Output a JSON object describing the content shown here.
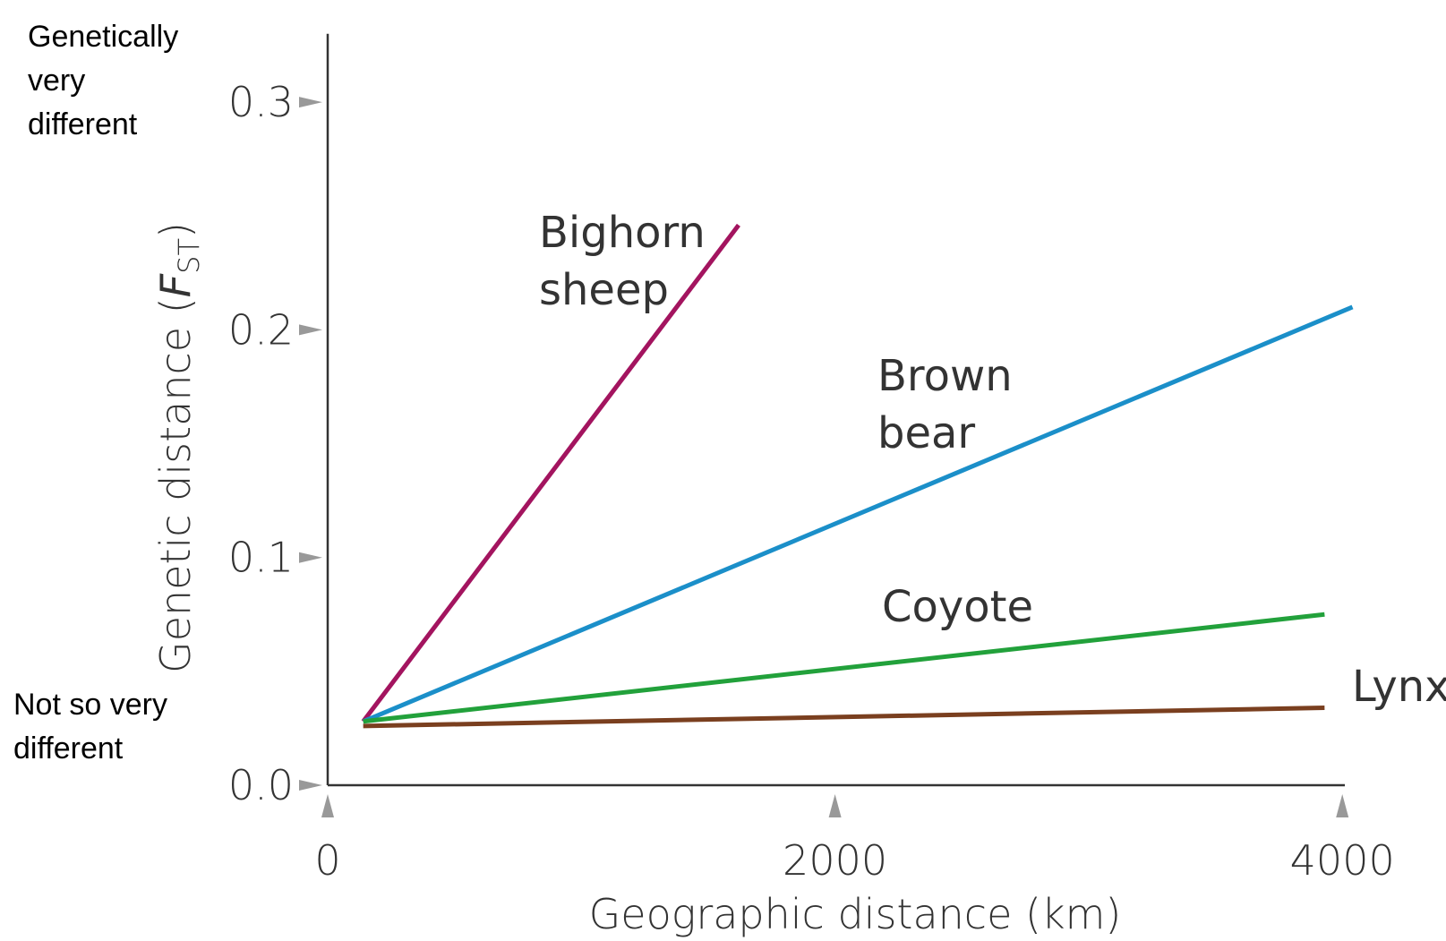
{
  "chart_data": {
    "type": "line",
    "xlabel": "Geographic distance (km)",
    "ylabel": {
      "text": "Genetic distance (",
      "symbol": "F",
      "subscript": "ST",
      "close": ")"
    },
    "annotations": [
      "Genetically very different",
      "Not so very different"
    ],
    "xlim": [
      0,
      4010
    ],
    "ylim": [
      0,
      0.33
    ],
    "xticks": [
      0,
      2000,
      4000
    ],
    "yticks": [
      {
        "value": 0,
        "label": "0.0"
      },
      0.1,
      0.2,
      0.3
    ],
    "series": [
      {
        "name": "Bighorn sheep",
        "color": "#a3145f",
        "x": [
          140,
          1620
        ],
        "values": [
          0.028,
          0.246
        ]
      },
      {
        "name": "Brown bear",
        "color": "#1b8fc9",
        "x": [
          140,
          4040
        ],
        "values": [
          0.028,
          0.21
        ]
      },
      {
        "name": "Coyote",
        "color": "#22a13b",
        "x": [
          140,
          3930
        ],
        "values": [
          0.028,
          0.075
        ]
      },
      {
        "name": "Lynx",
        "color": "#7a3f1f",
        "x": [
          140,
          3930
        ],
        "values": [
          0.026,
          0.034
        ]
      }
    ]
  }
}
